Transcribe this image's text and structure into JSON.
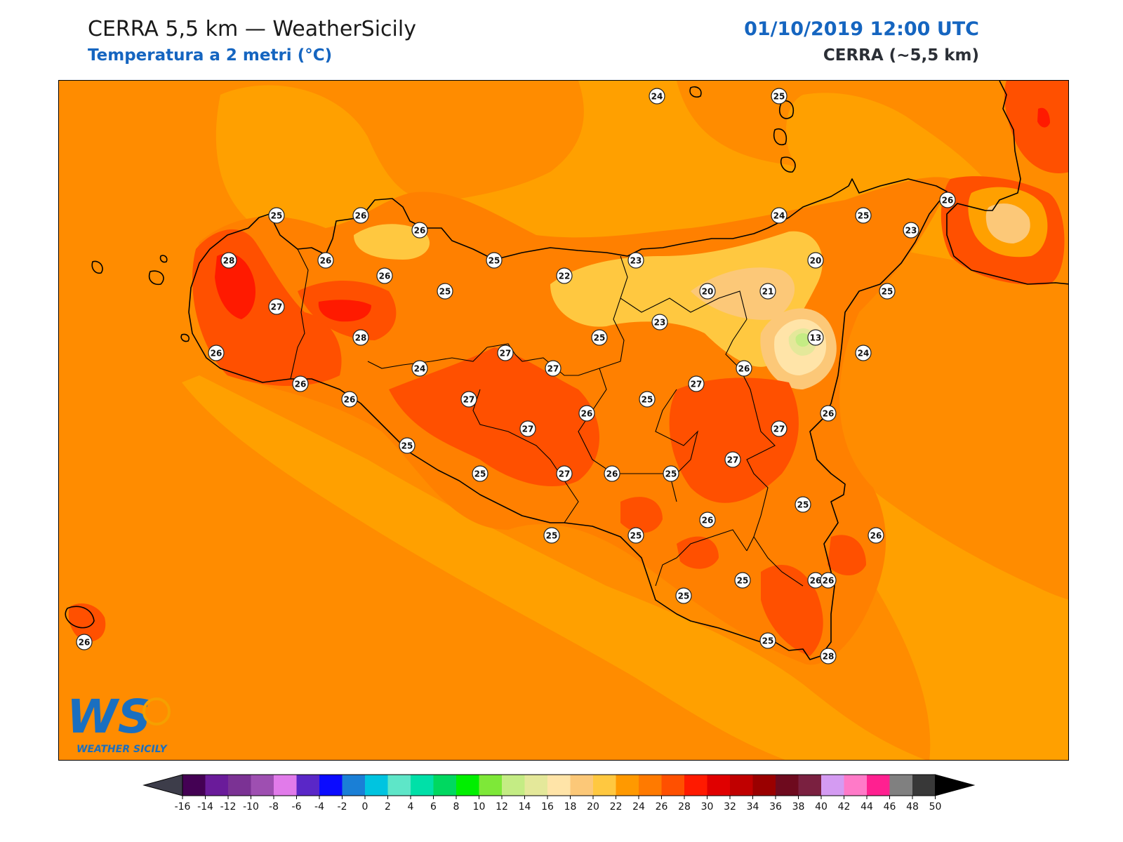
{
  "header": {
    "title": "CERRA 5,5 km — WeatherSicily",
    "subtitle": "Temperatura a 2 metri (°C)",
    "datetime": "01/10/2019 12:00 UTC",
    "model": "CERRA (~5,5 km)"
  },
  "logo": {
    "monogram": "WS",
    "name": "WEATHER SICILY",
    "colors": {
      "blue": "#1a6fc0",
      "orange": "#f5a000"
    }
  },
  "colorbar": {
    "ticks": [
      "-16",
      "-14",
      "-12",
      "-10",
      "-8",
      "-6",
      "-4",
      "-2",
      "0",
      "2",
      "4",
      "6",
      "8",
      "10",
      "12",
      "14",
      "16",
      "18",
      "20",
      "22",
      "24",
      "26",
      "28",
      "30",
      "32",
      "34",
      "36",
      "38",
      "40",
      "42",
      "44",
      "46",
      "48",
      "50"
    ],
    "colors": [
      "#440154",
      "#6a1b9a",
      "#7b3294",
      "#9e4fb1",
      "#e17bea",
      "#5a27c7",
      "#0b0bff",
      "#1a7fd6",
      "#00c4e0",
      "#5ee6c8",
      "#00e0a8",
      "#00d860",
      "#00ef00",
      "#7ee838",
      "#c4ec84",
      "#e4e89a",
      "#ffe4a8",
      "#fcc878",
      "#ffc840",
      "#ff9900",
      "#ff7a00",
      "#ff5000",
      "#ff1a00",
      "#e00000",
      "#c00000",
      "#9a0000",
      "#6e0a1e",
      "#7a2040",
      "#d49bf2",
      "#ff7ac8",
      "#ff2090",
      "#808080",
      "#383838"
    ],
    "under_color": "#3d3d4a",
    "over_color": "#000000"
  },
  "map": {
    "fill_colors": {
      "t22": "#ffc840",
      "t24": "#ffa000",
      "t26": "#ff8000",
      "t28": "#ff5000",
      "t30": "#ff1a00",
      "t20": "#fcc878",
      "t18": "#ffe4a8",
      "t14": "#e4e89a",
      "t12": "#c4ec84"
    },
    "stations": [
      {
        "v": "24"
      },
      {
        "v": "25"
      },
      {
        "v": "25"
      },
      {
        "v": "26"
      },
      {
        "v": "26"
      },
      {
        "v": "24"
      },
      {
        "v": "25"
      },
      {
        "v": "26"
      },
      {
        "v": "23"
      },
      {
        "v": "28"
      },
      {
        "v": "26"
      },
      {
        "v": "26"
      },
      {
        "v": "25"
      },
      {
        "v": "23"
      },
      {
        "v": "20"
      },
      {
        "v": "22"
      },
      {
        "v": "25"
      },
      {
        "v": "20"
      },
      {
        "v": "21"
      },
      {
        "v": "25"
      },
      {
        "v": "27"
      },
      {
        "v": "23"
      },
      {
        "v": "13"
      },
      {
        "v": "28"
      },
      {
        "v": "25"
      },
      {
        "v": "26"
      },
      {
        "v": "27"
      },
      {
        "v": "27"
      },
      {
        "v": "24"
      },
      {
        "v": "24"
      },
      {
        "v": "26"
      },
      {
        "v": "26"
      },
      {
        "v": "27"
      },
      {
        "v": "26"
      },
      {
        "v": "27"
      },
      {
        "v": "25"
      },
      {
        "v": "26"
      },
      {
        "v": "27"
      },
      {
        "v": "26"
      },
      {
        "v": "27"
      },
      {
        "v": "25"
      },
      {
        "v": "27"
      },
      {
        "v": "25"
      },
      {
        "v": "27"
      },
      {
        "v": "26"
      },
      {
        "v": "25"
      },
      {
        "v": "25"
      },
      {
        "v": "26"
      },
      {
        "v": "25"
      },
      {
        "v": "25"
      },
      {
        "v": "26"
      },
      {
        "v": "26"
      },
      {
        "v": "25"
      },
      {
        "v": "25"
      },
      {
        "v": "26"
      },
      {
        "v": "25"
      },
      {
        "v": "28"
      },
      {
        "v": "26"
      }
    ]
  }
}
